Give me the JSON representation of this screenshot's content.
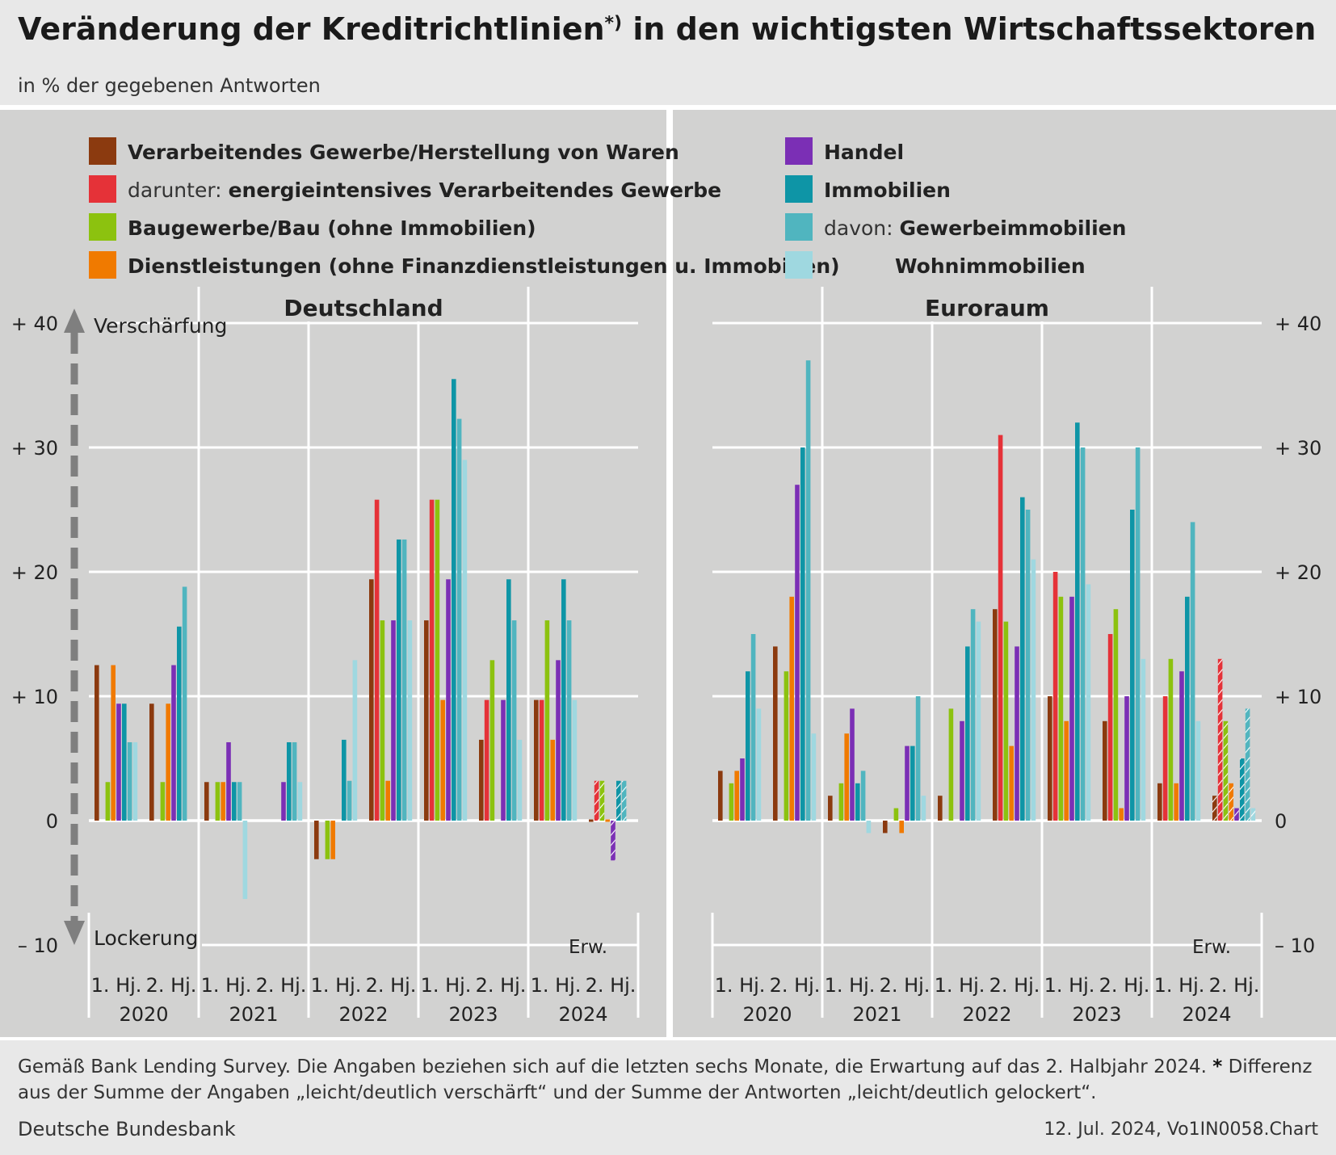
{
  "title": "Veränderung der Kreditrichtlinien",
  "title_sup": "*)",
  "title_rest": " in den wichtigsten Wirtschaftssektoren",
  "subtitle": "in % der gegebenen Antworten",
  "footnote": "Gemäß Bank Lending Survey. Die Angaben beziehen sich auf die letzten sechs Monate, die Erwartung auf das 2. Halbjahr 2024.",
  "footnote_star": "*",
  "footnote_rest": "Differenz aus der Summe der Angaben „leicht/deutlich verschärft“ und der Summe der Antworten „leicht/deutlich gelockert“.",
  "source": "Deutsche Bundesbank",
  "stamp": "12. Jul. 2024, Vo1IN0058.Chart",
  "legend": [
    {
      "prefix": "",
      "label": "Verarbeitendes Gewerbe/Herstellung von Waren",
      "color": "#8b3a0f"
    },
    {
      "prefix": "darunter: ",
      "label": "energieintensives Verarbeitendes Gewerbe",
      "color": "#e53238"
    },
    {
      "prefix": "",
      "label": "Baugewerbe/Bau (ohne Immobilien)",
      "color": "#8cc20f"
    },
    {
      "prefix": "",
      "label": "Dienstleistungen (ohne Finanzdienstleistungen u. Immobilien)",
      "color": "#f07a00"
    },
    {
      "prefix": "",
      "label": "Handel",
      "color": "#7b2fb5"
    },
    {
      "prefix": "",
      "label": "Immobilien",
      "color": "#0e95a6"
    },
    {
      "prefix": "davon: ",
      "label": "Gewerbeimmobilien",
      "color": "#50b5bf"
    },
    {
      "prefix": "",
      "label": "Wohnimmobilien",
      "color": "#9fd8e0"
    }
  ],
  "axis": {
    "ticks": [
      "+ 40",
      "+ 30",
      "+ 20",
      "+ 10",
      "0",
      "– 10"
    ],
    "arrow_up_label": "Verschärfung",
    "arrow_down_label": "Lockerung",
    "expect_label": "Erw."
  },
  "chart_data": [
    {
      "type": "bar",
      "title": "Deutschland",
      "ylabel": "in % der gegebenen Antworten",
      "ylim": [
        -10,
        40
      ],
      "categories": [
        "1. Hj.",
        "2. Hj.",
        "1. Hj.",
        "2. Hj.",
        "1. Hj.",
        "2. Hj.",
        "1. Hj.",
        "2. Hj.",
        "1. Hj.",
        "2. Hj."
      ],
      "years": [
        "2020",
        "2021",
        "2022",
        "2023",
        "2024"
      ],
      "expectation_index": 9,
      "series": [
        {
          "name": "Verarbeitendes Gewerbe/Herstellung von Waren",
          "values": [
            12.5,
            9.4,
            3.1,
            0,
            -3.1,
            19.4,
            16.1,
            6.5,
            9.7,
            0
          ]
        },
        {
          "name": "energieintensives Verarbeitendes Gewerbe",
          "values": [
            0,
            0,
            0,
            0,
            0,
            25.8,
            25.8,
            9.7,
            9.7,
            3.2
          ]
        },
        {
          "name": "Baugewerbe/Bau (ohne Immobilien)",
          "values": [
            3.1,
            3.1,
            3.1,
            0,
            -3.1,
            16.1,
            25.8,
            12.9,
            16.1,
            3.2
          ]
        },
        {
          "name": "Dienstleistungen (ohne Finanzdienstleistungen u. Immobilien)",
          "values": [
            12.5,
            9.4,
            3.1,
            0,
            -3.1,
            3.2,
            9.7,
            0,
            6.5,
            0
          ]
        },
        {
          "name": "Handel",
          "values": [
            9.4,
            12.5,
            6.3,
            3.1,
            0,
            16.1,
            19.4,
            9.7,
            12.9,
            -3.2
          ]
        },
        {
          "name": "Immobilien",
          "values": [
            9.4,
            15.6,
            3.1,
            6.3,
            6.5,
            22.6,
            35.5,
            19.4,
            19.4,
            3.2
          ]
        },
        {
          "name": "Gewerbeimmobilien",
          "values": [
            6.3,
            18.8,
            3.1,
            6.3,
            3.2,
            22.6,
            32.3,
            16.1,
            16.1,
            3.2
          ]
        },
        {
          "name": "Wohnimmobilien",
          "values": [
            6.3,
            0,
            -6.3,
            3.1,
            12.9,
            16.1,
            29.0,
            6.5,
            9.7,
            0
          ]
        }
      ]
    },
    {
      "type": "bar",
      "title": "Euroraum",
      "ylabel": "in % der gegebenen Antworten",
      "ylim": [
        -10,
        40
      ],
      "categories": [
        "1. Hj.",
        "2. Hj.",
        "1. Hj.",
        "2. Hj.",
        "1. Hj.",
        "2. Hj.",
        "1. Hj.",
        "2. Hj.",
        "1. Hj.",
        "2. Hj."
      ],
      "years": [
        "2020",
        "2021",
        "2022",
        "2023",
        "2024"
      ],
      "expectation_index": 9,
      "series": [
        {
          "name": "Verarbeitendes Gewerbe/Herstellung von Waren",
          "values": [
            4,
            14,
            2,
            -1,
            2,
            17,
            10,
            8,
            3,
            2
          ]
        },
        {
          "name": "energieintensives Verarbeitendes Gewerbe",
          "values": [
            0,
            0,
            0,
            0,
            0,
            31,
            20,
            15,
            10,
            13
          ]
        },
        {
          "name": "Baugewerbe/Bau (ohne Immobilien)",
          "values": [
            3,
            12,
            3,
            1,
            9,
            16,
            18,
            17,
            13,
            8
          ]
        },
        {
          "name": "Dienstleistungen (ohne Finanzdienstleistungen u. Immobilien)",
          "values": [
            4,
            18,
            7,
            -1,
            0,
            6,
            8,
            1,
            3,
            3
          ]
        },
        {
          "name": "Handel",
          "values": [
            5,
            27,
            9,
            6,
            8,
            14,
            18,
            10,
            12,
            1
          ]
        },
        {
          "name": "Immobilien",
          "values": [
            12,
            30,
            3,
            6,
            14,
            26,
            32,
            25,
            18,
            5
          ]
        },
        {
          "name": "Gewerbeimmobilien",
          "values": [
            15,
            37,
            4,
            10,
            17,
            25,
            30,
            30,
            24,
            9
          ]
        },
        {
          "name": "Wohnimmobilien",
          "values": [
            9,
            7,
            -1,
            2,
            16,
            21,
            19,
            13,
            8,
            1
          ]
        }
      ]
    }
  ]
}
